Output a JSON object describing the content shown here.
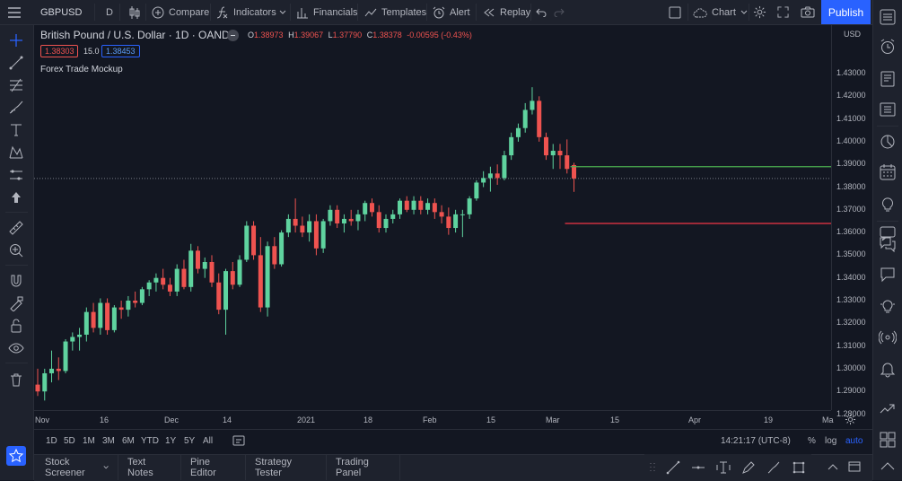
{
  "toolbar": {
    "symbol": "GBPUSD",
    "interval": "D",
    "compare": "Compare",
    "indicators": "Indicators",
    "financials": "Financials",
    "templates": "Templates",
    "alert": "Alert",
    "replay": "Replay",
    "layout": "Chart",
    "publish": "Publish"
  },
  "legend": {
    "title": "British Pound / U.S. Dollar · 1D · OANDA",
    "o_label": "O",
    "o_value": "1.38973",
    "h_label": "H",
    "h_value": "1.39067",
    "l_label": "L",
    "l_value": "1.37790",
    "c_label": "C",
    "c_value": "1.38378",
    "change": "-0.00595 (-0.43%)",
    "bid": "1.38303",
    "spread": "15.0",
    "ask": "1.38453",
    "indicator": "Forex Trade Mockup"
  },
  "price_axis": {
    "currency": "USD",
    "labels": [
      "1.43000",
      "1.42000",
      "1.41000",
      "1.40000",
      "1.39000",
      "1.38000",
      "1.37000",
      "1.36000",
      "1.35000",
      "1.34000",
      "1.33000",
      "1.32000",
      "1.31000",
      "1.30000",
      "1.29000",
      "1.28000"
    ]
  },
  "time_axis": {
    "labels": [
      "Nov",
      "16",
      "Dec",
      "14",
      "2021",
      "18",
      "Feb",
      "15",
      "Mar",
      "15",
      "Apr",
      "19",
      "Ma"
    ]
  },
  "bottom": {
    "ranges": [
      "1D",
      "5D",
      "1M",
      "3M",
      "6M",
      "YTD",
      "1Y",
      "5Y",
      "All"
    ],
    "clock": "14:21:17 (UTC-8)",
    "pct": "%",
    "log": "log",
    "auto": "auto"
  },
  "panels": [
    "Stock Screener",
    "Text Notes",
    "Pine Editor",
    "Strategy Tester",
    "Trading Panel"
  ],
  "colors": {
    "up": "#26a69a",
    "up_body": "#5fd39f",
    "down": "#ef5350",
    "take_profit": "#4caf50",
    "stop_loss": "#f23645",
    "accent": "#2962ff"
  },
  "chart_data": {
    "type": "candlestick",
    "ylim": [
      1.275,
      1.435
    ],
    "take_profit": 1.389,
    "stop_loss": 1.364,
    "current_price": 1.38378,
    "candles": [
      [
        1.293,
        1.3,
        1.288,
        1.29
      ],
      [
        1.29,
        1.3,
        1.286,
        1.298
      ],
      [
        1.298,
        1.308,
        1.294,
        1.3
      ],
      [
        1.3,
        1.305,
        1.295,
        1.299
      ],
      [
        1.299,
        1.313,
        1.298,
        1.312
      ],
      [
        1.312,
        1.316,
        1.308,
        1.314
      ],
      [
        1.314,
        1.318,
        1.308,
        1.315
      ],
      [
        1.315,
        1.327,
        1.312,
        1.325
      ],
      [
        1.325,
        1.329,
        1.316,
        1.318
      ],
      [
        1.318,
        1.331,
        1.315,
        1.329
      ],
      [
        1.329,
        1.331,
        1.315,
        1.317
      ],
      [
        1.317,
        1.328,
        1.316,
        1.327
      ],
      [
        1.327,
        1.33,
        1.322,
        1.326
      ],
      [
        1.326,
        1.332,
        1.323,
        1.33
      ],
      [
        1.33,
        1.334,
        1.327,
        1.329
      ],
      [
        1.329,
        1.336,
        1.328,
        1.335
      ],
      [
        1.335,
        1.339,
        1.332,
        1.338
      ],
      [
        1.338,
        1.342,
        1.334,
        1.34
      ],
      [
        1.34,
        1.344,
        1.335,
        1.337
      ],
      [
        1.337,
        1.34,
        1.332,
        1.334
      ],
      [
        1.334,
        1.346,
        1.332,
        1.344
      ],
      [
        1.344,
        1.348,
        1.335,
        1.336
      ],
      [
        1.336,
        1.355,
        1.334,
        1.352
      ],
      [
        1.352,
        1.354,
        1.342,
        1.344
      ],
      [
        1.344,
        1.349,
        1.34,
        1.347
      ],
      [
        1.347,
        1.35,
        1.336,
        1.338
      ],
      [
        1.338,
        1.342,
        1.324,
        1.326
      ],
      [
        1.326,
        1.344,
        1.315,
        1.343
      ],
      [
        1.343,
        1.347,
        1.335,
        1.337
      ],
      [
        1.337,
        1.35,
        1.336,
        1.348
      ],
      [
        1.348,
        1.365,
        1.347,
        1.363
      ],
      [
        1.363,
        1.365,
        1.348,
        1.35
      ],
      [
        1.35,
        1.358,
        1.325,
        1.327
      ],
      [
        1.327,
        1.356,
        1.323,
        1.354
      ],
      [
        1.354,
        1.358,
        1.344,
        1.346
      ],
      [
        1.346,
        1.361,
        1.345,
        1.36
      ],
      [
        1.36,
        1.368,
        1.358,
        1.366
      ],
      [
        1.366,
        1.375,
        1.36,
        1.363
      ],
      [
        1.363,
        1.367,
        1.358,
        1.36
      ],
      [
        1.36,
        1.368,
        1.356,
        1.365
      ],
      [
        1.365,
        1.368,
        1.35,
        1.353
      ],
      [
        1.353,
        1.366,
        1.351,
        1.365
      ],
      [
        1.365,
        1.372,
        1.363,
        1.37
      ],
      [
        1.37,
        1.372,
        1.362,
        1.364
      ],
      [
        1.364,
        1.368,
        1.36,
        1.366
      ],
      [
        1.366,
        1.37,
        1.363,
        1.365
      ],
      [
        1.365,
        1.37,
        1.361,
        1.368
      ],
      [
        1.368,
        1.374,
        1.365,
        1.373
      ],
      [
        1.373,
        1.375,
        1.367,
        1.369
      ],
      [
        1.369,
        1.372,
        1.36,
        1.362
      ],
      [
        1.362,
        1.368,
        1.36,
        1.366
      ],
      [
        1.366,
        1.37,
        1.364,
        1.368
      ],
      [
        1.368,
        1.375,
        1.366,
        1.374
      ],
      [
        1.374,
        1.376,
        1.369,
        1.37
      ],
      [
        1.37,
        1.376,
        1.368,
        1.374
      ],
      [
        1.374,
        1.376,
        1.368,
        1.37
      ],
      [
        1.37,
        1.375,
        1.368,
        1.373
      ],
      [
        1.373,
        1.375,
        1.366,
        1.369
      ],
      [
        1.369,
        1.372,
        1.364,
        1.367
      ],
      [
        1.367,
        1.371,
        1.359,
        1.362
      ],
      [
        1.362,
        1.37,
        1.36,
        1.368
      ],
      [
        1.368,
        1.37,
        1.358,
        1.368
      ],
      [
        1.368,
        1.376,
        1.366,
        1.375
      ],
      [
        1.375,
        1.383,
        1.374,
        1.382
      ],
      [
        1.382,
        1.387,
        1.38,
        1.384
      ],
      [
        1.384,
        1.389,
        1.378,
        1.386
      ],
      [
        1.386,
        1.39,
        1.381,
        1.384
      ],
      [
        1.384,
        1.396,
        1.383,
        1.394
      ],
      [
        1.394,
        1.404,
        1.392,
        1.402
      ],
      [
        1.402,
        1.408,
        1.4,
        1.406
      ],
      [
        1.406,
        1.417,
        1.404,
        1.414
      ],
      [
        1.414,
        1.424,
        1.412,
        1.418
      ],
      [
        1.418,
        1.42,
        1.4,
        1.402
      ],
      [
        1.402,
        1.404,
        1.392,
        1.394
      ],
      [
        1.394,
        1.399,
        1.388,
        1.396
      ],
      [
        1.396,
        1.399,
        1.388,
        1.394
      ],
      [
        1.394,
        1.401,
        1.386,
        1.388
      ],
      [
        1.3897,
        1.3907,
        1.3779,
        1.3838
      ]
    ]
  }
}
